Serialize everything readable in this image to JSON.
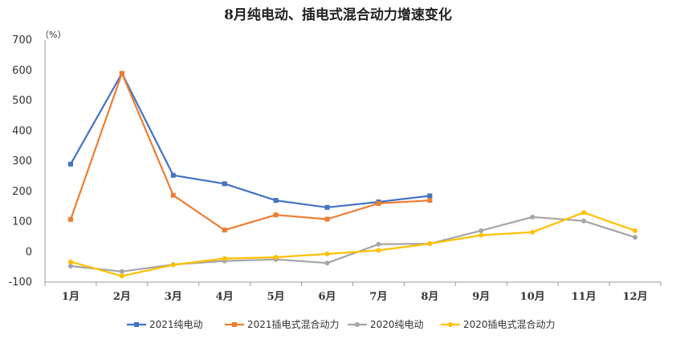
{
  "chart_data": {
    "type": "line",
    "title": "8月纯电动、插电式混合动力增速变化",
    "unit": "（%）",
    "xlabel": "",
    "ylabel": "",
    "categories": [
      "1月",
      "2月",
      "3月",
      "4月",
      "5月",
      "6月",
      "7月",
      "8月",
      "9月",
      "10月",
      "11月",
      "12月"
    ],
    "ylim": [
      -100,
      700
    ],
    "yticks": [
      -100,
      0,
      100,
      200,
      300,
      400,
      500,
      600,
      700
    ],
    "grid": false,
    "legend_position": "bottom",
    "series": [
      {
        "name": "2021纯电动",
        "color": "#4472C4",
        "marker": "square",
        "values": [
          290,
          590,
          253,
          225,
          170,
          147,
          165,
          185,
          null,
          null,
          null,
          null
        ]
      },
      {
        "name": "2021插电式混合动力",
        "color": "#ED7D31",
        "marker": "square",
        "values": [
          107,
          590,
          187,
          72,
          122,
          108,
          160,
          170,
          null,
          null,
          null,
          null
        ]
      },
      {
        "name": "2020纯电动",
        "color": "#A5A5A5",
        "marker": "circle",
        "values": [
          -47,
          -65,
          -42,
          -30,
          -25,
          -37,
          25,
          27,
          70,
          115,
          102,
          48
        ]
      },
      {
        "name": "2020插电式混合动力",
        "color": "#FFC000",
        "marker": "circle",
        "values": [
          -33,
          -80,
          -43,
          -22,
          -18,
          -7,
          5,
          27,
          55,
          65,
          130,
          70
        ]
      }
    ]
  }
}
